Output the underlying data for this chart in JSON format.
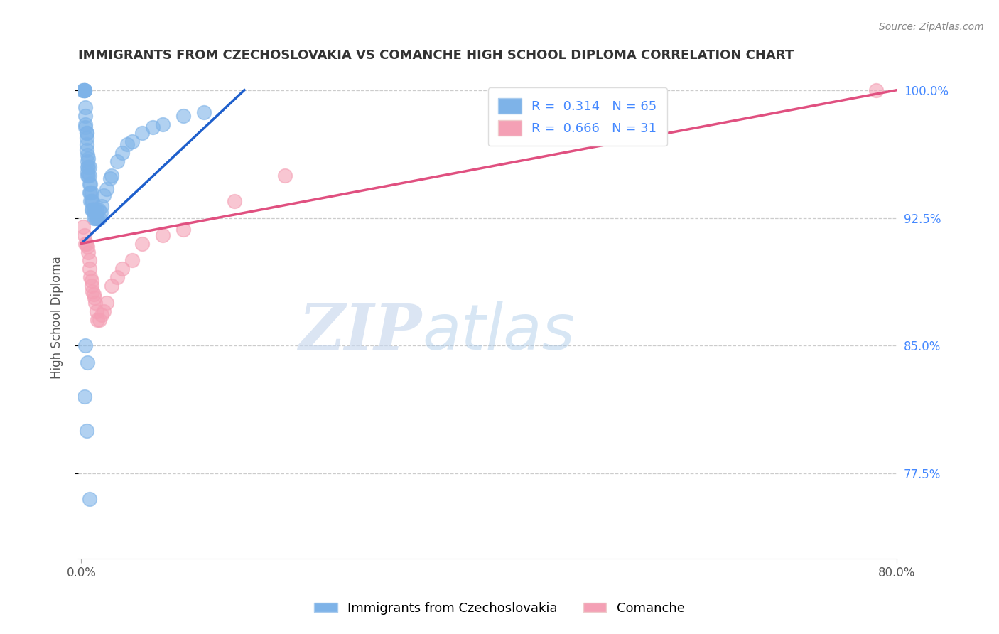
{
  "title": "IMMIGRANTS FROM CZECHOSLOVAKIA VS COMANCHE HIGH SCHOOL DIPLOMA CORRELATION CHART",
  "source": "Source: ZipAtlas.com",
  "xlabel_bottom": "Immigrants from Czechoslovakia",
  "xlabel_right": "Comanche",
  "ylabel": "High School Diploma",
  "x_min": 0.0,
  "x_max": 0.8,
  "y_min": 0.725,
  "y_max": 1.008,
  "y_ticks": [
    0.775,
    0.85,
    0.925,
    1.0
  ],
  "y_tick_labels": [
    "77.5%",
    "85.0%",
    "92.5%",
    "100.0%"
  ],
  "blue_R": 0.314,
  "blue_N": 65,
  "pink_R": 0.666,
  "pink_N": 31,
  "blue_color": "#7EB3E8",
  "pink_color": "#F4A0B5",
  "blue_line_color": "#1E5FCC",
  "pink_line_color": "#E05080",
  "background_color": "#FFFFFF",
  "right_tick_color": "#4488FF",
  "watermark_zip": "ZIP",
  "watermark_atlas": "atlas",
  "blue_x": [
    0.002,
    0.002,
    0.003,
    0.003,
    0.003,
    0.003,
    0.004,
    0.004,
    0.004,
    0.004,
    0.005,
    0.005,
    0.005,
    0.005,
    0.005,
    0.006,
    0.006,
    0.006,
    0.006,
    0.006,
    0.007,
    0.007,
    0.007,
    0.008,
    0.008,
    0.008,
    0.008,
    0.009,
    0.009,
    0.009,
    0.01,
    0.01,
    0.01,
    0.011,
    0.011,
    0.012,
    0.012,
    0.013,
    0.013,
    0.014,
    0.015,
    0.015,
    0.016,
    0.017,
    0.018,
    0.019,
    0.02,
    0.022,
    0.025,
    0.028,
    0.03,
    0.035,
    0.04,
    0.045,
    0.05,
    0.06,
    0.07,
    0.08,
    0.1,
    0.12,
    0.003,
    0.004,
    0.005,
    0.006,
    0.008
  ],
  "blue_y": [
    1.0,
    1.0,
    1.0,
    1.0,
    1.0,
    1.0,
    0.99,
    0.985,
    0.98,
    0.978,
    0.975,
    0.975,
    0.972,
    0.968,
    0.965,
    0.962,
    0.958,
    0.955,
    0.952,
    0.95,
    0.96,
    0.955,
    0.95,
    0.955,
    0.95,
    0.945,
    0.94,
    0.945,
    0.94,
    0.935,
    0.94,
    0.935,
    0.93,
    0.935,
    0.93,
    0.93,
    0.925,
    0.93,
    0.928,
    0.925,
    0.93,
    0.925,
    0.925,
    0.93,
    0.925,
    0.928,
    0.932,
    0.938,
    0.942,
    0.948,
    0.95,
    0.958,
    0.963,
    0.968,
    0.97,
    0.975,
    0.978,
    0.98,
    0.985,
    0.987,
    0.82,
    0.85,
    0.8,
    0.84,
    0.76
  ],
  "pink_x": [
    0.002,
    0.003,
    0.004,
    0.005,
    0.006,
    0.007,
    0.008,
    0.008,
    0.009,
    0.01,
    0.01,
    0.011,
    0.012,
    0.013,
    0.014,
    0.015,
    0.016,
    0.018,
    0.02,
    0.022,
    0.025,
    0.03,
    0.035,
    0.04,
    0.05,
    0.06,
    0.08,
    0.1,
    0.15,
    0.2,
    0.78
  ],
  "pink_y": [
    0.92,
    0.915,
    0.91,
    0.91,
    0.908,
    0.905,
    0.9,
    0.895,
    0.89,
    0.888,
    0.885,
    0.882,
    0.88,
    0.878,
    0.875,
    0.87,
    0.865,
    0.865,
    0.868,
    0.87,
    0.875,
    0.885,
    0.89,
    0.895,
    0.9,
    0.91,
    0.915,
    0.918,
    0.935,
    0.95,
    1.0
  ],
  "blue_line_x": [
    0.0,
    0.16
  ],
  "blue_line_y": [
    0.91,
    1.0
  ],
  "pink_line_x": [
    0.0,
    0.8
  ],
  "pink_line_y": [
    0.91,
    1.0
  ]
}
